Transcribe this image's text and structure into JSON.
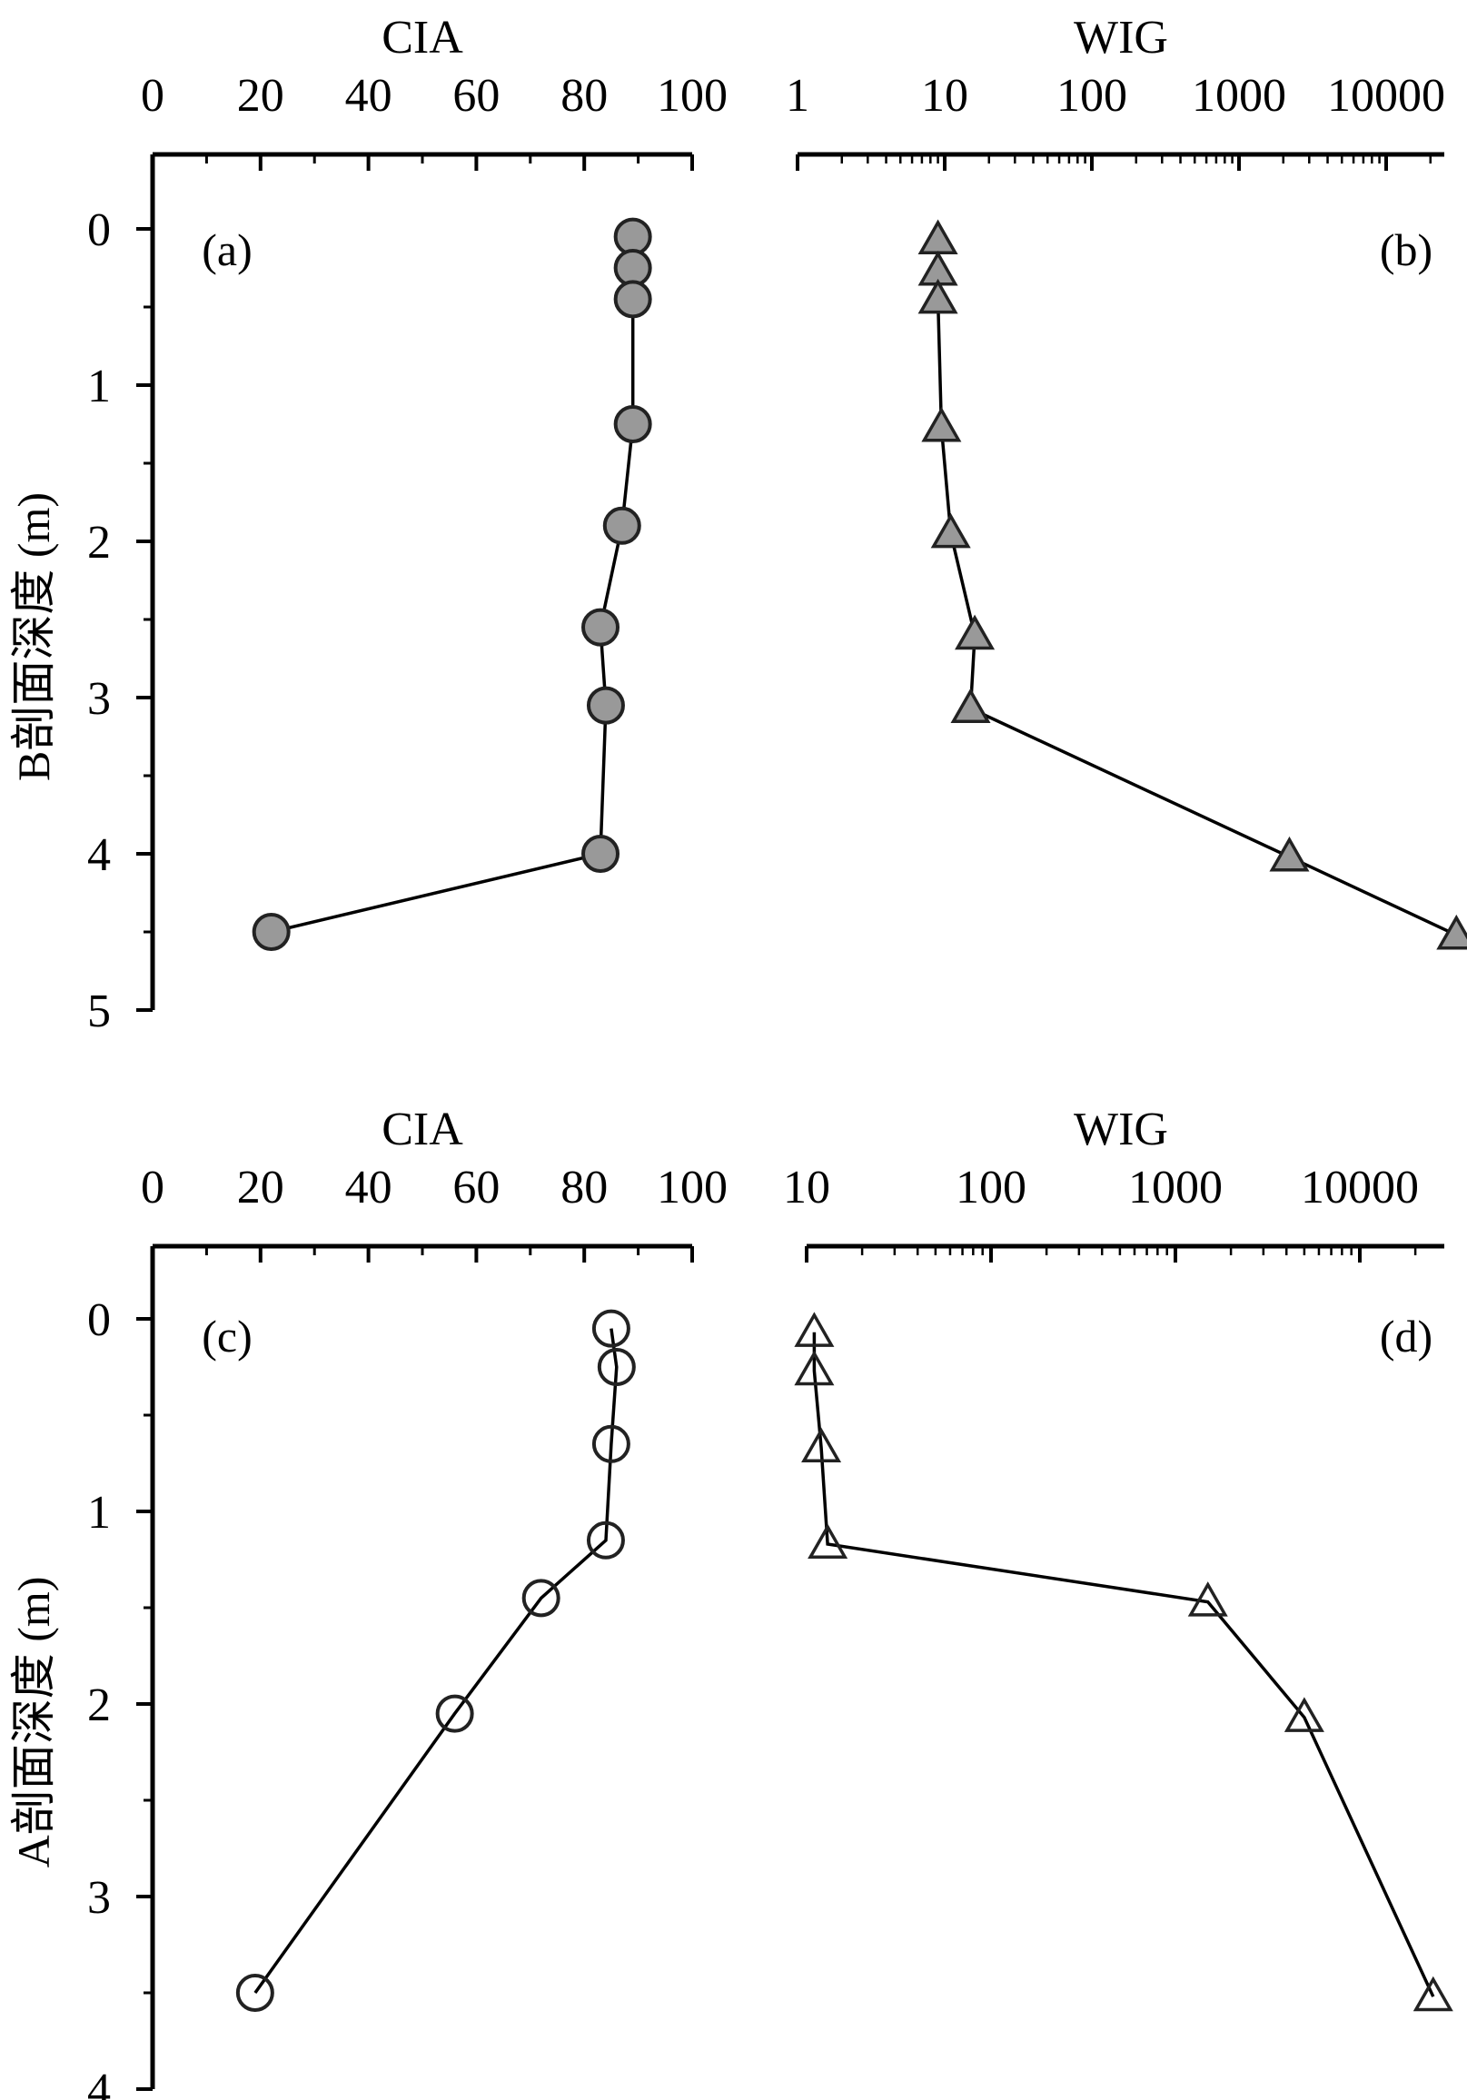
{
  "chart_data": [
    {
      "id": "a",
      "type": "line",
      "panel_label": "(a)",
      "title": "CIA",
      "xlabel": "CIA",
      "ylabel": "B剖面深度 (m)",
      "x_scale": "linear",
      "x_axis_position": "top",
      "y_inverted": true,
      "xlim": [
        0,
        100
      ],
      "ylim": [
        0,
        5
      ],
      "x_ticks": [
        0,
        20,
        40,
        60,
        80,
        100
      ],
      "x_tick_labels": [
        "0",
        "20",
        "40",
        "60",
        "80",
        "100"
      ],
      "y_ticks": [
        0,
        1,
        2,
        3,
        4,
        5
      ],
      "y_tick_labels": [
        "0",
        "1",
        "2",
        "3",
        "4",
        "5"
      ],
      "grid": false,
      "marker": "circle",
      "marker_fill": "#999999",
      "series": [
        {
          "x": [
            89,
            89,
            89,
            89,
            87,
            83,
            84,
            83,
            22
          ],
          "y": [
            0.05,
            0.25,
            0.45,
            1.25,
            1.9,
            2.55,
            3.05,
            4.0,
            4.5
          ]
        }
      ]
    },
    {
      "id": "b",
      "type": "line",
      "panel_label": "(b)",
      "title": "WIG",
      "xlabel": "WIG",
      "ylabel": "",
      "x_scale": "log",
      "x_axis_position": "top",
      "y_inverted": true,
      "xlim": [
        1,
        30000
      ],
      "ylim": [
        0,
        5
      ],
      "x_ticks": [
        1,
        10,
        100,
        1000,
        10000
      ],
      "x_tick_labels": [
        "1",
        "10",
        "100",
        "1000",
        "10000"
      ],
      "grid": false,
      "marker": "triangle",
      "marker_fill": "#999999",
      "series": [
        {
          "x": [
            9,
            9,
            9,
            9.5,
            11,
            16,
            15,
            2200,
            30000
          ],
          "y": [
            0.07,
            0.27,
            0.45,
            1.27,
            1.95,
            2.6,
            3.07,
            4.02,
            4.52
          ]
        }
      ]
    },
    {
      "id": "c",
      "type": "line",
      "panel_label": "(c)",
      "title": "CIA",
      "xlabel": "CIA",
      "ylabel": "A剖面深度 (m)",
      "x_scale": "linear",
      "x_axis_position": "top",
      "y_inverted": true,
      "xlim": [
        0,
        100
      ],
      "ylim": [
        0,
        4
      ],
      "x_ticks": [
        0,
        20,
        40,
        60,
        80,
        100
      ],
      "x_tick_labels": [
        "0",
        "20",
        "40",
        "60",
        "80",
        "100"
      ],
      "y_ticks": [
        0,
        1,
        2,
        3,
        4
      ],
      "y_tick_labels": [
        "0",
        "1",
        "2",
        "3",
        "4"
      ],
      "grid": false,
      "marker": "circle",
      "marker_fill": "none",
      "series": [
        {
          "x": [
            85,
            86,
            85,
            84,
            72,
            56,
            19
          ],
          "y": [
            0.05,
            0.25,
            0.65,
            1.15,
            1.45,
            2.05,
            3.5
          ]
        }
      ]
    },
    {
      "id": "d",
      "type": "line",
      "panel_label": "(d)",
      "title": "WIG",
      "xlabel": "WIG",
      "ylabel": "",
      "x_scale": "log",
      "x_axis_position": "top",
      "y_inverted": true,
      "xlim": [
        10,
        40000
      ],
      "ylim": [
        0,
        4
      ],
      "x_ticks": [
        10,
        100,
        1000,
        10000
      ],
      "x_tick_labels": [
        "10",
        "100",
        "1000",
        "10000"
      ],
      "grid": false,
      "marker": "triangle",
      "marker_fill": "none",
      "series": [
        {
          "x": [
            11,
            11,
            12,
            13,
            1500,
            5000,
            25000
          ],
          "y": [
            0.07,
            0.27,
            0.67,
            1.17,
            1.47,
            2.07,
            3.52
          ]
        }
      ]
    }
  ]
}
